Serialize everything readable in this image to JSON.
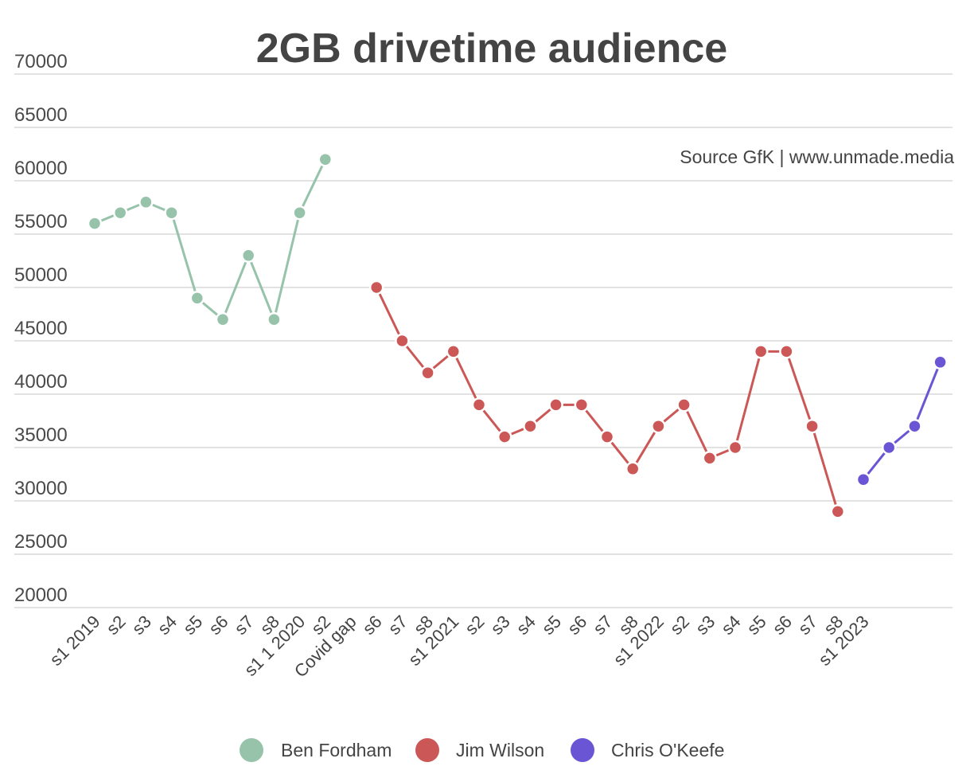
{
  "chart_data": {
    "type": "line",
    "title": "2GB drivetime audience",
    "annotation": "Source GfK | www.unmade.media",
    "xlabel": "",
    "ylabel": "",
    "ylim": [
      20000,
      70000
    ],
    "yticks": [
      70000,
      65000,
      60000,
      55000,
      50000,
      45000,
      40000,
      35000,
      30000,
      25000,
      20000
    ],
    "grid": true,
    "legend_position": "bottom",
    "categories": [
      "s1 2019",
      "s2",
      "s3",
      "s4",
      "s5",
      "s6",
      "s7",
      "s8",
      "s1 1 2020",
      "s2",
      "Covid gap",
      "s6",
      "s7",
      "s8",
      "s1 2021",
      "s2",
      "s3",
      "s4",
      "s5",
      "s6",
      "s7",
      "s8",
      "s1 2022",
      "s2",
      "s3",
      "s4",
      "s5",
      "s6",
      "s7",
      "s8",
      "s1 2023",
      "",
      "",
      ""
    ],
    "series": [
      {
        "name": "Ben Fordham",
        "color": "#96c3a9",
        "values": [
          56000,
          57000,
          58000,
          57000,
          49000,
          47000,
          53000,
          47000,
          57000,
          62000,
          null,
          null,
          null,
          null,
          null,
          null,
          null,
          null,
          null,
          null,
          null,
          null,
          null,
          null,
          null,
          null,
          null,
          null,
          null,
          null,
          null,
          null,
          null,
          null
        ]
      },
      {
        "name": "Jim Wilson",
        "color": "#cb5856",
        "values": [
          null,
          null,
          null,
          null,
          null,
          null,
          null,
          null,
          null,
          null,
          null,
          50000,
          45000,
          42000,
          44000,
          39000,
          36000,
          37000,
          39000,
          39000,
          36000,
          33000,
          37000,
          39000,
          34000,
          35000,
          44000,
          44000,
          37000,
          29000,
          null,
          null,
          null,
          null
        ]
      },
      {
        "name": "Chris O'Keefe",
        "color": "#6a55d4",
        "values": [
          null,
          null,
          null,
          null,
          null,
          null,
          null,
          null,
          null,
          null,
          null,
          null,
          null,
          null,
          null,
          null,
          null,
          null,
          null,
          null,
          null,
          null,
          null,
          null,
          null,
          null,
          null,
          null,
          null,
          null,
          32000,
          35000,
          37000,
          43000
        ]
      }
    ]
  }
}
